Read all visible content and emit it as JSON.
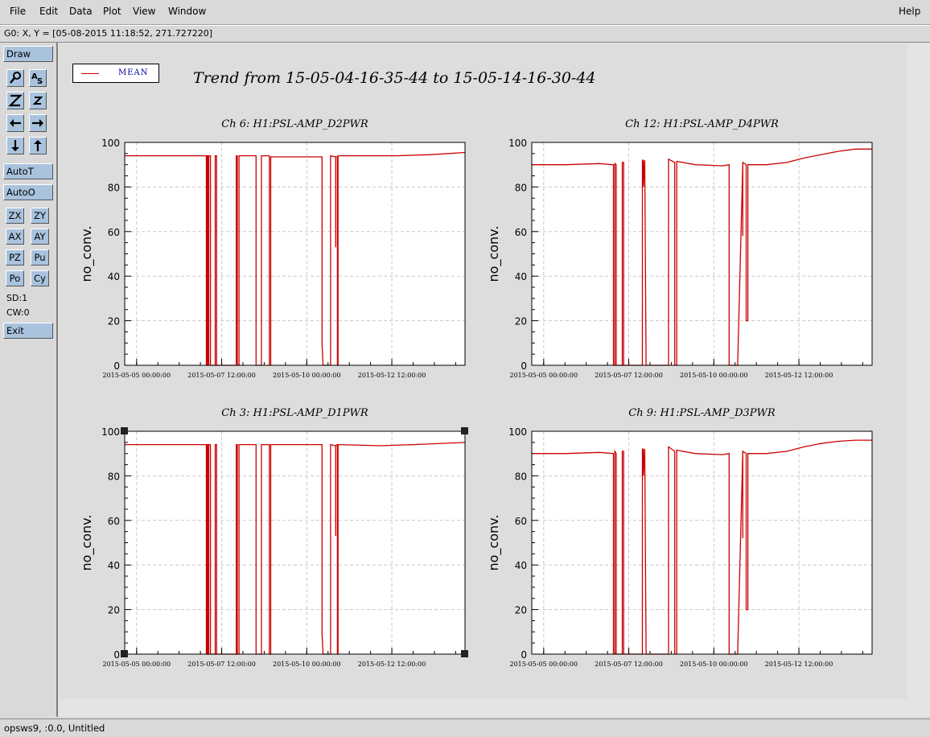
{
  "menubar": {
    "items": [
      "File",
      "Edit",
      "Data",
      "Plot",
      "View",
      "Window"
    ],
    "help": "Help"
  },
  "coord_readout": "G0: X, Y = [05-08-2015 11:18:52, 271.727220]",
  "toolbar": {
    "draw": "Draw",
    "icons": [
      "magnify-icon",
      "text-icon",
      "zoom-big-icon",
      "zoom-small-icon",
      "arrow-left-icon",
      "arrow-right-icon",
      "arrow-down-icon",
      "arrow-up-icon"
    ],
    "autot": "AutoT",
    "autoo": "AutoO",
    "small_buttons": [
      "ZX",
      "ZY",
      "AX",
      "AY",
      "PZ",
      "Pu",
      "Po",
      "Cy"
    ],
    "sd": "SD:1",
    "cw": "CW:0",
    "exit": "Exit"
  },
  "legend": {
    "label": "MEAN",
    "color": "#cc0000"
  },
  "title": "Trend from 15-05-04-16-35-44 to 15-05-14-16-30-44",
  "status": "opsws9, :0.0, Untitled",
  "chart_data": [
    {
      "type": "line",
      "title": "Ch 6: H1:PSL-AMP_D2PWR",
      "ylabel": "no_conv.",
      "ylim": [
        0,
        100
      ],
      "yticks": [
        "0",
        "20",
        "40",
        "60",
        "80",
        "100"
      ],
      "xticks": [
        "2015-05-05 00:00:00",
        "2015-05-07 12:00:00",
        "2015-05-10 00:00:00",
        "2015-05-12 12:00:00"
      ],
      "xlim": [
        0,
        10
      ],
      "series": [
        {
          "color": "#cc0000",
          "x": [
            0,
            2.4,
            2.4,
            2.42,
            2.42,
            2.45,
            2.45,
            2.47,
            2.47,
            2.52,
            2.52,
            2.66,
            2.66,
            2.7,
            2.7,
            3.28,
            3.28,
            3.31,
            3.31,
            3.36,
            3.36,
            3.86,
            3.86,
            4.02,
            4.02,
            4.25,
            4.25,
            4.29,
            4.29,
            5.8,
            5.8,
            5.83,
            5.83,
            6.05,
            6.05,
            6.2,
            6.2,
            6.2,
            6.25,
            6.25,
            6.27,
            6.27,
            6.32,
            6.32,
            8.0,
            9.0,
            10.0
          ],
          "y": [
            94,
            94,
            0,
            0,
            94,
            94,
            0,
            0,
            94,
            94,
            0,
            0,
            94,
            94,
            0,
            0,
            94,
            94,
            0,
            0,
            94,
            94,
            0,
            0,
            94,
            94,
            0,
            0,
            93.5,
            93.5,
            9,
            0,
            0,
            0,
            94,
            93.5,
            53,
            93.5,
            93.5,
            0,
            0,
            94,
            94,
            94,
            94,
            94.5,
            95.5
          ]
        }
      ]
    },
    {
      "type": "line",
      "title": "Ch 12: H1:PSL-AMP_D4PWR",
      "ylabel": "no_conv.",
      "ylim": [
        0,
        100
      ],
      "yticks": [
        "0",
        "20",
        "40",
        "60",
        "80",
        "100"
      ],
      "xticks": [
        "2015-05-05 00:00:00",
        "2015-05-07 12:00:00",
        "2015-05-10 00:00:00",
        "2015-05-12 12:00:00"
      ],
      "xlim": [
        0,
        10
      ],
      "series": [
        {
          "color": "#cc0000",
          "x": [
            0,
            1.0,
            2.0,
            2.4,
            2.4,
            2.44,
            2.44,
            2.48,
            2.48,
            2.66,
            2.66,
            2.7,
            2.7,
            3.25,
            3.25,
            3.28,
            3.28,
            3.32,
            3.32,
            3.36,
            3.36,
            3.86,
            3.86,
            4.02,
            4.02,
            4.2,
            4.2,
            4.26,
            4.26,
            4.8,
            5.6,
            5.8,
            5.8,
            6.05,
            6.05,
            6.2,
            6.2,
            6.2,
            6.3,
            6.3,
            6.35,
            6.35,
            6.9,
            7.5,
            8.0,
            8.5,
            9.0,
            9.5,
            10.0
          ],
          "y": [
            90,
            90,
            90.5,
            90,
            0,
            0,
            90.5,
            90,
            0,
            0,
            91,
            91,
            0,
            0,
            92,
            92,
            80,
            92,
            92,
            0,
            0,
            0,
            0,
            0,
            92.5,
            91,
            0,
            0,
            91.5,
            90,
            89.5,
            90,
            0,
            0,
            0,
            91,
            58,
            91,
            90,
            20,
            20,
            90,
            90,
            91,
            93,
            94.5,
            96,
            97,
            97
          ]
        }
      ]
    },
    {
      "type": "line",
      "title": "Ch 3: H1:PSL-AMP_D1PWR",
      "ylabel": "no_conv.",
      "ylim": [
        0,
        100
      ],
      "yticks": [
        "0",
        "20",
        "40",
        "60",
        "80",
        "100"
      ],
      "xticks": [
        "2015-05-05 00:00:00",
        "2015-05-07 12:00:00",
        "2015-05-10 00:00:00",
        "2015-05-12 12:00:00"
      ],
      "xlim": [
        0,
        10
      ],
      "series": [
        {
          "color": "#cc0000",
          "x": [
            0,
            2.4,
            2.4,
            2.42,
            2.42,
            2.45,
            2.45,
            2.47,
            2.47,
            2.52,
            2.52,
            2.66,
            2.66,
            2.7,
            2.7,
            3.28,
            3.28,
            3.31,
            3.31,
            3.36,
            3.36,
            3.86,
            3.86,
            4.02,
            4.02,
            4.25,
            4.25,
            4.29,
            4.29,
            5.8,
            5.8,
            5.83,
            5.83,
            6.05,
            6.05,
            6.2,
            6.2,
            6.2,
            6.25,
            6.25,
            6.27,
            6.27,
            6.32,
            6.32,
            7.5,
            8.5,
            10.0
          ],
          "y": [
            94,
            94,
            0,
            0,
            94,
            94,
            0,
            0,
            94,
            94,
            0,
            0,
            94,
            94,
            0,
            0,
            94,
            94,
            0,
            0,
            94,
            94,
            0,
            0,
            94,
            94,
            0,
            0,
            94,
            94,
            9,
            0,
            0,
            0,
            94,
            93.5,
            53,
            93.5,
            94,
            0,
            0,
            94,
            94,
            94,
            93.5,
            94,
            95
          ]
        }
      ]
    },
    {
      "type": "line",
      "title": "Ch 9: H1:PSL-AMP_D3PWR",
      "ylabel": "no_conv.",
      "ylim": [
        0,
        100
      ],
      "yticks": [
        "0",
        "20",
        "40",
        "60",
        "80",
        "100"
      ],
      "xticks": [
        "2015-05-05 00:00:00",
        "2015-05-07 12:00:00",
        "2015-05-10 00:00:00",
        "2015-05-12 12:00:00"
      ],
      "xlim": [
        0,
        10
      ],
      "series": [
        {
          "color": "#cc0000",
          "x": [
            0,
            1.0,
            2.0,
            2.4,
            2.4,
            2.44,
            2.44,
            2.48,
            2.48,
            2.66,
            2.66,
            2.7,
            2.7,
            3.25,
            3.25,
            3.28,
            3.28,
            3.32,
            3.32,
            3.36,
            3.36,
            3.86,
            3.86,
            4.02,
            4.02,
            4.2,
            4.2,
            4.26,
            4.26,
            4.8,
            5.6,
            5.8,
            5.8,
            6.05,
            6.05,
            6.2,
            6.2,
            6.2,
            6.3,
            6.3,
            6.35,
            6.35,
            6.9,
            7.5,
            8.0,
            8.5,
            9.0,
            9.5,
            10.0
          ],
          "y": [
            90,
            90,
            90.5,
            90,
            0,
            0,
            91,
            90,
            0,
            0,
            91,
            91,
            0,
            0,
            92,
            92,
            80,
            92,
            92,
            0,
            0,
            0,
            0,
            0,
            93,
            91,
            0,
            0,
            91.5,
            90,
            89.5,
            90,
            0,
            0,
            0,
            91,
            52,
            91,
            90,
            20,
            20,
            90,
            90,
            91,
            93,
            94.5,
            95.5,
            96,
            96
          ]
        }
      ]
    }
  ]
}
